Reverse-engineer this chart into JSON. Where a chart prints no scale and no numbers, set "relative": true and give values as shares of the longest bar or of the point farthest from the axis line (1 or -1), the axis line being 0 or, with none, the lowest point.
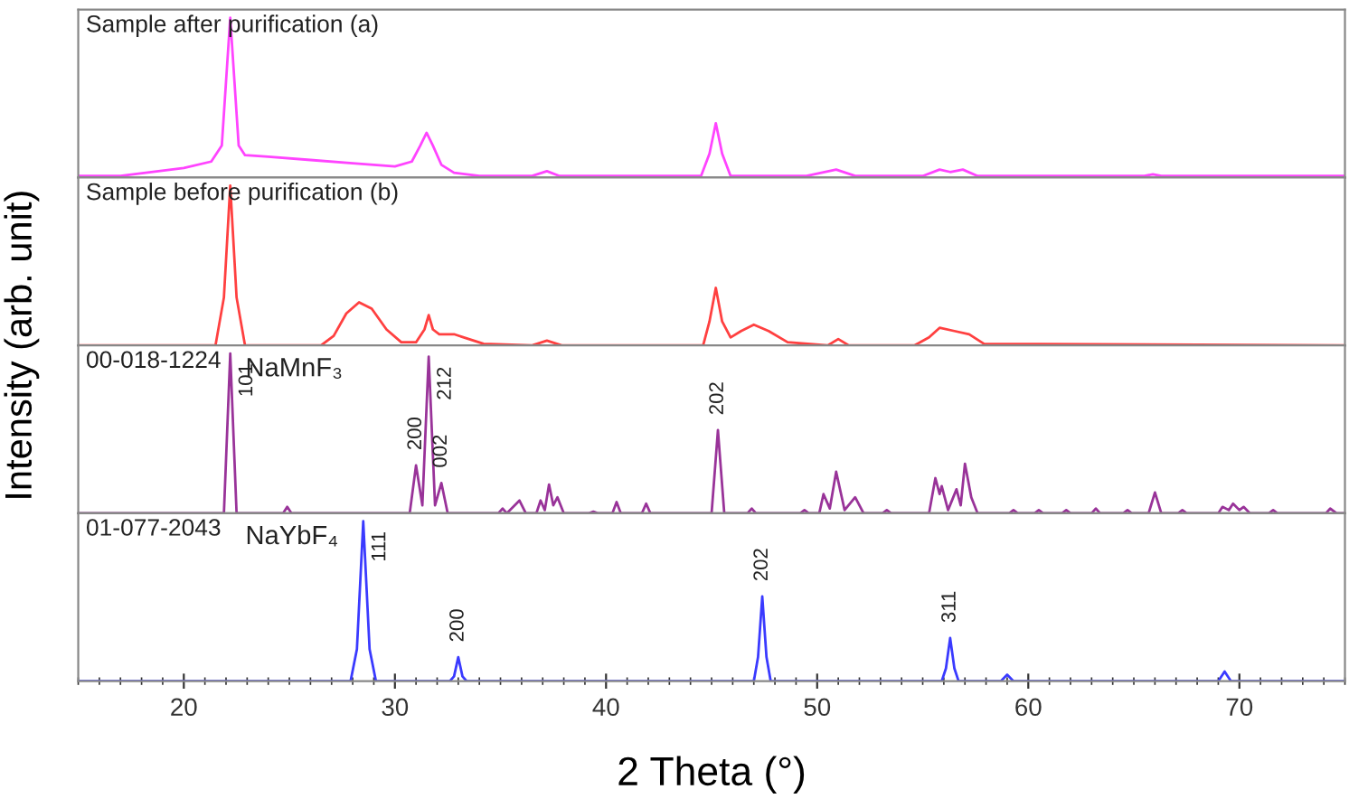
{
  "chart_data": [
    {
      "type": "line",
      "title": "Sample after purification (a)",
      "ylabel": "Intensity (arb. unit)",
      "relative": true,
      "xlim": [
        15,
        75
      ],
      "tick_labels": false,
      "series": [
        {
          "color": "#ff44ff",
          "x": [
            15,
            17,
            18.2,
            20,
            21.3,
            21.8,
            22.0,
            22.2,
            22.4,
            22.6,
            22.9,
            24,
            26,
            28,
            30,
            30.8,
            31.2,
            31.5,
            31.8,
            32.2,
            32.8,
            34,
            36.5,
            37.2,
            37.8,
            40,
            44.5,
            44.9,
            45.2,
            45.5,
            45.9,
            49.5,
            50.9,
            51.8,
            55,
            55.8,
            56.3,
            56.9,
            57.6,
            65.5,
            65.9,
            66.3,
            75
          ],
          "values": [
            0.01,
            0.01,
            0.03,
            0.06,
            0.1,
            0.2,
            0.6,
            1.0,
            0.6,
            0.2,
            0.14,
            0.13,
            0.11,
            0.09,
            0.07,
            0.1,
            0.2,
            0.28,
            0.2,
            0.08,
            0.03,
            0.01,
            0.01,
            0.04,
            0.01,
            0.01,
            0.01,
            0.15,
            0.34,
            0.15,
            0.01,
            0.01,
            0.05,
            0.01,
            0.01,
            0.05,
            0.035,
            0.05,
            0.01,
            0.01,
            0.02,
            0.01,
            0.01
          ]
        }
      ]
    },
    {
      "type": "line",
      "title": "Sample before purification (b)",
      "relative": true,
      "xlim": [
        15,
        75
      ],
      "tick_labels": false,
      "series": [
        {
          "color": "#ff4040",
          "x": [
            15,
            21.5,
            21.9,
            22.2,
            22.5,
            22.9,
            26.5,
            27.1,
            27.7,
            28.3,
            28.9,
            29.6,
            30.3,
            31.0,
            31.4,
            31.6,
            31.8,
            32.1,
            32.8,
            33.5,
            34.2,
            36.5,
            37.2,
            37.9,
            44.6,
            44.9,
            45.2,
            45.5,
            45.9,
            46.4,
            47.0,
            47.7,
            48.6,
            50.5,
            51.0,
            51.5,
            54.6,
            55.3,
            55.8,
            56.5,
            57.2,
            57.9,
            75
          ],
          "values": [
            0.0,
            0.0,
            0.3,
            1.0,
            0.3,
            0.0,
            0.0,
            0.06,
            0.2,
            0.27,
            0.23,
            0.1,
            0.02,
            0.02,
            0.1,
            0.19,
            0.1,
            0.07,
            0.07,
            0.04,
            0.01,
            0.0,
            0.03,
            0.0,
            0.0,
            0.15,
            0.36,
            0.15,
            0.05,
            0.09,
            0.13,
            0.09,
            0.02,
            0.0,
            0.04,
            0.0,
            0.0,
            0.05,
            0.11,
            0.09,
            0.07,
            0.01,
            0.0
          ]
        }
      ]
    },
    {
      "type": "line",
      "title": "00-018-1224",
      "subtitle": "NaMnF₃",
      "relative": true,
      "xlim": [
        15,
        75
      ],
      "tick_labels": false,
      "annotations": [
        {
          "text": "101",
          "x": 22.2,
          "y": 1.0
        },
        {
          "text": "200",
          "x": 31.0,
          "y": 0.3
        },
        {
          "text": "212",
          "x": 31.6,
          "y": 0.98
        },
        {
          "text": "002",
          "x": 32.2,
          "y": 0.19
        },
        {
          "text": "202",
          "x": 45.3,
          "y": 0.52
        }
      ],
      "series": [
        {
          "color": "#993399",
          "x": [
            15,
            21.9,
            22.2,
            22.5,
            24.7,
            24.9,
            25.1,
            30.7,
            31.0,
            31.3,
            31.6,
            31.9,
            32.2,
            32.5,
            34.9,
            35.1,
            35.3,
            35.9,
            36.2,
            36.7,
            36.9,
            37.1,
            37.3,
            37.5,
            37.7,
            38.0,
            39.2,
            39.4,
            39.6,
            40.3,
            40.5,
            40.7,
            41.7,
            41.9,
            42.1,
            45.0,
            45.3,
            45.6,
            46.7,
            46.9,
            47.1,
            49.2,
            49.4,
            49.6,
            50.1,
            50.3,
            50.6,
            50.9,
            51.3,
            51.8,
            52.2,
            53.1,
            53.3,
            53.5,
            55.3,
            55.6,
            55.8,
            55.9,
            56.2,
            56.6,
            56.8,
            57.0,
            57.3,
            57.6,
            59.1,
            59.3,
            59.5,
            60.3,
            60.5,
            60.7,
            61.6,
            61.8,
            62.0,
            63.0,
            63.2,
            63.4,
            64.5,
            64.7,
            64.9,
            65.7,
            66.0,
            66.3,
            67.1,
            67.3,
            67.5,
            69.0,
            69.2,
            69.5,
            69.7,
            70.0,
            70.2,
            70.5,
            71.4,
            71.6,
            71.8,
            74.1,
            74.3,
            74.6,
            75
          ],
          "values": [
            0.0,
            0.0,
            1.0,
            0.0,
            0.0,
            0.04,
            0.0,
            0.0,
            0.3,
            0.05,
            0.98,
            0.05,
            0.19,
            0.0,
            0.0,
            0.03,
            0.0,
            0.08,
            0.0,
            0.0,
            0.08,
            0.02,
            0.18,
            0.05,
            0.1,
            0.0,
            0.0,
            0.01,
            0.0,
            0.0,
            0.07,
            0.0,
            0.0,
            0.06,
            0.0,
            0.0,
            0.52,
            0.0,
            0.0,
            0.03,
            0.0,
            0.0,
            0.02,
            0.0,
            0.0,
            0.12,
            0.03,
            0.26,
            0.02,
            0.1,
            0.0,
            0.0,
            0.02,
            0.0,
            0.0,
            0.22,
            0.12,
            0.17,
            0.02,
            0.15,
            0.05,
            0.31,
            0.1,
            0.0,
            0.0,
            0.02,
            0.0,
            0.0,
            0.02,
            0.0,
            0.0,
            0.02,
            0.0,
            0.0,
            0.03,
            0.0,
            0.0,
            0.02,
            0.0,
            0.0,
            0.13,
            0.0,
            0.0,
            0.02,
            0.0,
            0.0,
            0.04,
            0.02,
            0.06,
            0.02,
            0.04,
            0.0,
            0.0,
            0.02,
            0.0,
            0.0,
            0.03,
            0.0,
            0.0
          ]
        }
      ]
    },
    {
      "type": "line",
      "title": "01-077-2043",
      "subtitle": "NaYbF₄",
      "xlabel": "2 Theta (°)",
      "relative": true,
      "xlim": [
        15,
        75
      ],
      "xticks": [
        20,
        30,
        40,
        50,
        60,
        70
      ],
      "tick_labels": "x",
      "annotations": [
        {
          "text": "111",
          "x": 28.5,
          "y": 1.0
        },
        {
          "text": "200",
          "x": 33.0,
          "y": 0.15
        },
        {
          "text": "202",
          "x": 47.4,
          "y": 0.53
        },
        {
          "text": "311",
          "x": 56.3,
          "y": 0.27
        }
      ],
      "series": [
        {
          "color": "#3a3aff",
          "x": [
            15,
            27.9,
            28.2,
            28.5,
            28.8,
            29.1,
            32.6,
            32.8,
            33.0,
            33.2,
            33.4,
            47.0,
            47.2,
            47.4,
            47.6,
            47.8,
            55.9,
            56.1,
            56.3,
            56.5,
            56.7,
            58.7,
            59.0,
            59.3,
            69.0,
            69.3,
            69.6,
            75
          ],
          "values": [
            0.0,
            0.0,
            0.2,
            1.0,
            0.2,
            0.0,
            0.0,
            0.03,
            0.15,
            0.03,
            0.0,
            0.0,
            0.15,
            0.53,
            0.15,
            0.0,
            0.0,
            0.08,
            0.27,
            0.08,
            0.0,
            0.0,
            0.04,
            0.0,
            0.0,
            0.06,
            0.0,
            0.0
          ]
        }
      ]
    }
  ]
}
